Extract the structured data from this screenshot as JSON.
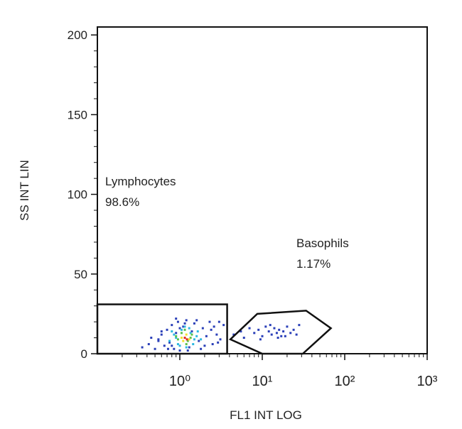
{
  "chart_data": {
    "type": "scatter",
    "x_label": "FL1 INT LOG",
    "y_label": "SS INT LIN",
    "xscale": "log",
    "xlim": [
      0.1,
      1000
    ],
    "ylim": [
      0,
      205
    ],
    "xticks": [
      {
        "value": 1,
        "label": "10⁰"
      },
      {
        "value": 10,
        "label": "10¹"
      },
      {
        "value": 100,
        "label": "10²"
      },
      {
        "value": 1000,
        "label": "10³"
      }
    ],
    "xminorticks": [
      0.2,
      0.3,
      0.4,
      0.5,
      0.6,
      0.7,
      0.8,
      0.9,
      2,
      3,
      4,
      5,
      6,
      7,
      8,
      9,
      20,
      30,
      40,
      50,
      60,
      70,
      80,
      90,
      200,
      300,
      400,
      500,
      600,
      700,
      800,
      900
    ],
    "yticks": [
      0,
      50,
      100,
      150,
      200
    ],
    "yminorticks": [
      10,
      20,
      30,
      40,
      60,
      70,
      80,
      90,
      110,
      120,
      130,
      140,
      160,
      170,
      180,
      190
    ],
    "series": [
      {
        "color": "#2a3fb8",
        "x": [
          0.35,
          0.42,
          0.5,
          0.55,
          0.6,
          0.65,
          0.7,
          0.75,
          0.8,
          0.85,
          0.9,
          0.95,
          1.0,
          1.1,
          1.2,
          1.3,
          1.4,
          1.5,
          1.7,
          1.9,
          2.1,
          2.3,
          2.5,
          2.8,
          3.1,
          3.4,
          0.45,
          0.6,
          0.72,
          0.9,
          1.25,
          1.6,
          2.0,
          2.4,
          2.9,
          0.55,
          0.8,
          1.15,
          1.8,
          2.6,
          3.0,
          1.0,
          4.5,
          5.5,
          6,
          7,
          8,
          9,
          10,
          11,
          12,
          13,
          14,
          15,
          16,
          17,
          18,
          20,
          22,
          24,
          26,
          28,
          12.5,
          15.5,
          19,
          9.5
        ],
        "y": [
          4,
          6,
          3,
          9,
          12,
          5,
          15,
          7,
          18,
          3,
          13,
          20,
          2,
          17,
          21,
          4,
          14,
          19,
          8,
          16,
          11,
          20,
          6,
          12,
          9,
          18,
          10,
          14,
          3,
          22,
          2,
          21,
          5,
          15,
          7,
          8,
          5,
          19,
          3,
          17,
          20,
          16,
          12,
          14,
          10,
          16,
          13,
          15,
          11,
          17,
          14,
          12,
          16,
          13,
          15,
          11,
          14,
          17,
          13,
          15,
          12,
          18,
          18,
          10,
          11,
          9
        ]
      },
      {
        "color": "#2db8e0",
        "x": [
          0.75,
          0.85,
          0.95,
          1.05,
          1.2,
          1.35,
          1.5,
          1.65,
          0.8,
          1.0,
          1.3,
          1.6,
          0.9,
          1.15,
          1.45,
          1.8
        ],
        "y": [
          8,
          12,
          6,
          15,
          4,
          13,
          9,
          14,
          14,
          5,
          16,
          11,
          10,
          17,
          6,
          9
        ]
      },
      {
        "color": "#5cc24a",
        "x": [
          0.95,
          1.05,
          1.2,
          1.35,
          0.9,
          1.15,
          1.4,
          1.25
        ],
        "y": [
          9,
          13,
          6,
          10,
          11,
          15,
          12,
          8
        ]
      },
      {
        "color": "#f0e02a",
        "x": [
          1.05,
          1.2,
          1.3,
          1.1
        ],
        "y": [
          10,
          12,
          9,
          8
        ]
      },
      {
        "color": "#e0281e",
        "x": [
          1.15,
          1.22
        ],
        "y": [
          10,
          9
        ]
      }
    ],
    "gates": [
      {
        "name": "Lymphocytes",
        "percent": "98.6%",
        "x": [
          0.1,
          3.75,
          3.75,
          0.1
        ],
        "y": [
          31,
          31,
          0,
          0
        ]
      },
      {
        "name": "Basophils",
        "percent": "1.17%",
        "x": [
          4.1,
          8.7,
          34,
          68,
          31,
          10
        ],
        "y": [
          9,
          25,
          27,
          16,
          0,
          0
        ]
      }
    ]
  }
}
